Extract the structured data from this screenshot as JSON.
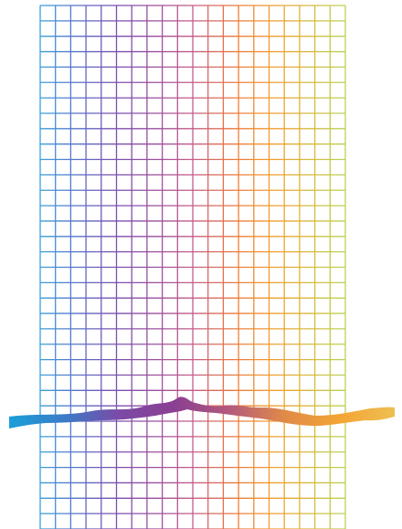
{
  "artwork": {
    "grid": {
      "columns": 20,
      "rows": 34,
      "stroke_colors": [
        "#3aa0d8",
        "#5b6fc8",
        "#7a4fb0",
        "#9a4e9e",
        "#c65c88",
        "#e8763f",
        "#f39a2e",
        "#d9b83a",
        "#b9d255"
      ]
    },
    "brush_stroke": {
      "gradient_colors": [
        "#1a9fd8",
        "#3a7cc8",
        "#7b4aa6",
        "#8a3f92",
        "#b45a7c",
        "#e08a48",
        "#f4a534",
        "#eebf52"
      ]
    }
  }
}
